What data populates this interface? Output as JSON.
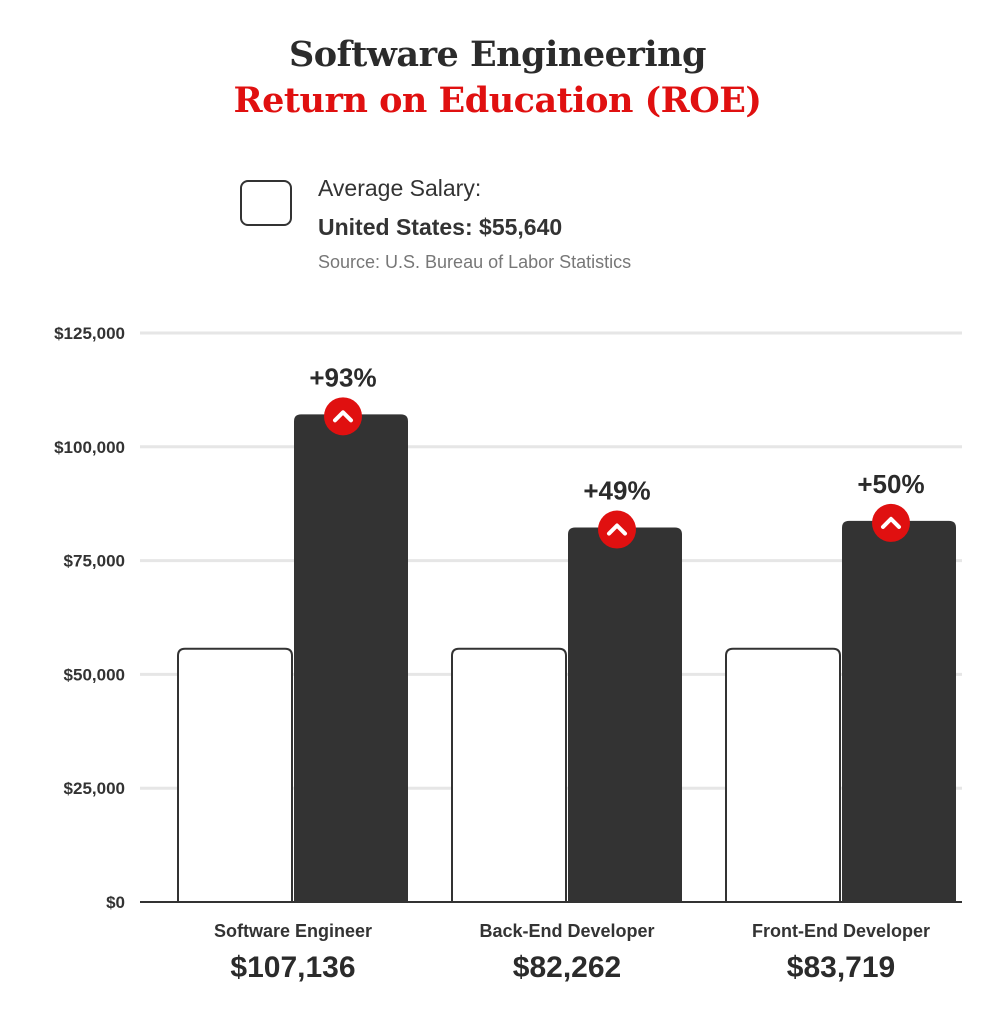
{
  "title": "Software Engineering",
  "subtitle": "Return on Education (ROE)",
  "legend": {
    "label": "Average Salary:",
    "value": "United States: $55,640",
    "source": "Source: U.S. Bureau of Labor Statistics"
  },
  "colors": {
    "accent": "#e01010",
    "bar_dark": "#333333",
    "bar_light": "#ffffff",
    "grid": "#e6e6e6"
  },
  "chart_data": {
    "type": "bar",
    "title": "Software Engineering",
    "subtitle": "Return on Education (ROE)",
    "categories": [
      "Software Engineer",
      "Back-End Developer",
      "Front-End Developer"
    ],
    "series": [
      {
        "name": "Average Salary: United States: $55,640",
        "values": [
          55640,
          55640,
          55640
        ]
      },
      {
        "values": [
          107136,
          82262,
          83719
        ]
      }
    ],
    "salary_labels": [
      "$107,136",
      "$82,262",
      "$83,719"
    ],
    "percent_labels": [
      "+93%",
      "+49%",
      "+50%"
    ],
    "yticks": [
      0,
      25000,
      50000,
      75000,
      100000,
      125000
    ],
    "ytick_labels": [
      "$0",
      "$25,000",
      "$50,000",
      "$75,000",
      "$100,000",
      "$125,000"
    ],
    "ylim": [
      0,
      125000
    ],
    "grid": true,
    "legend_position": "top-center"
  }
}
